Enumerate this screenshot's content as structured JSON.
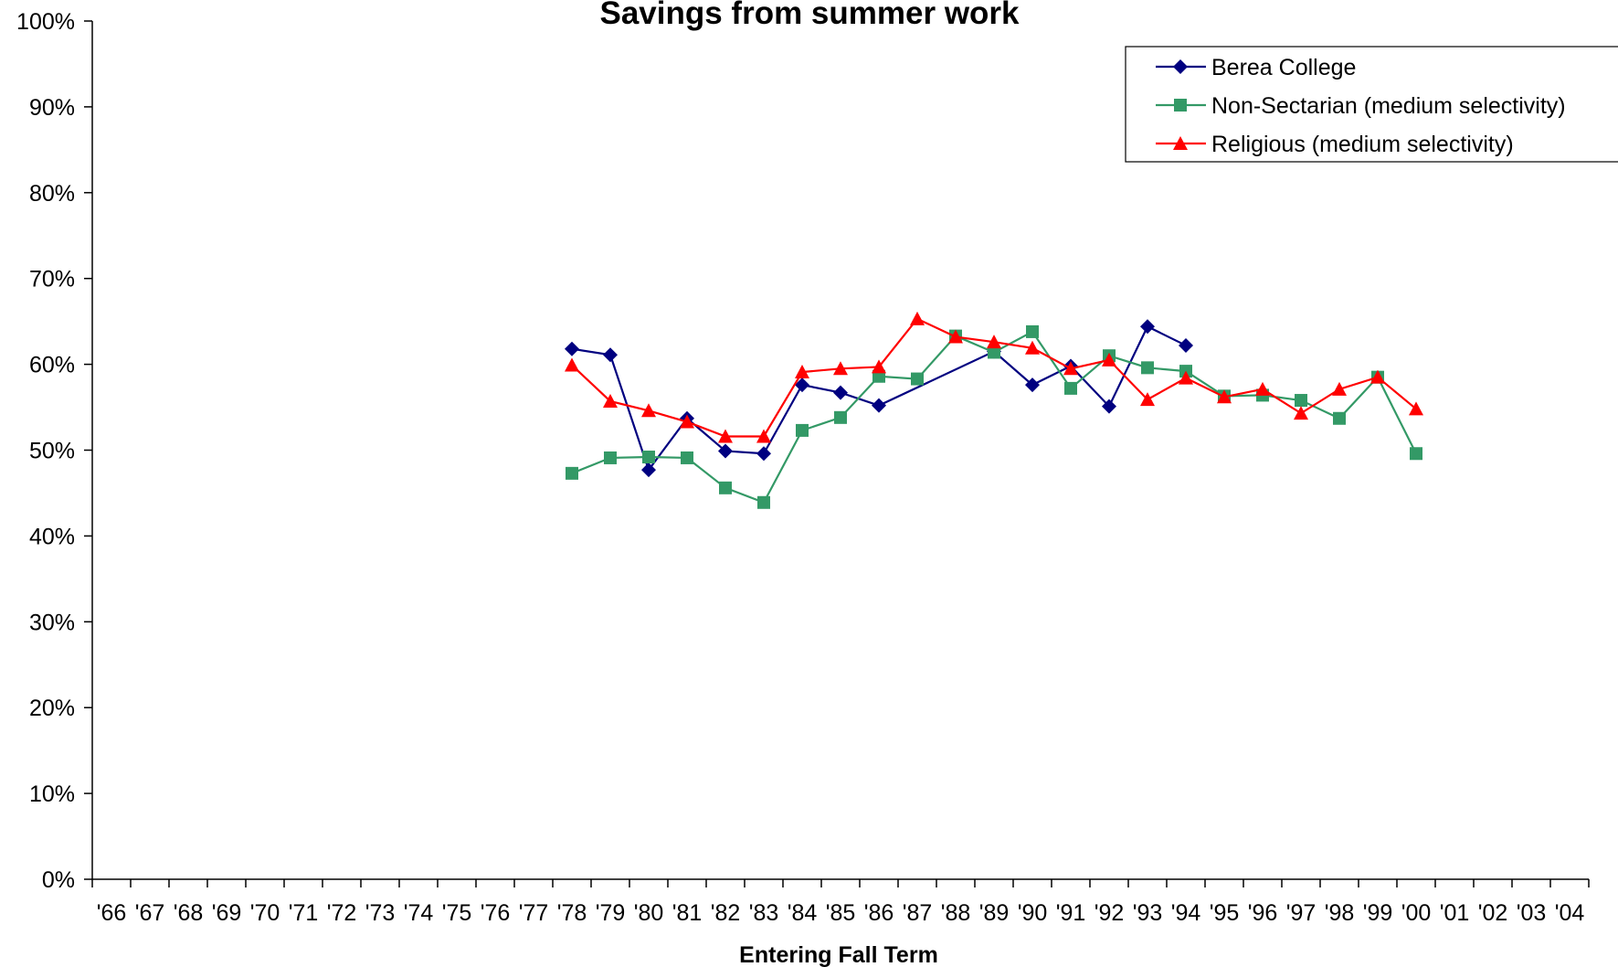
{
  "chart_data": {
    "type": "line",
    "title": "Savings from summer work",
    "xlabel": "Entering Fall Term",
    "ylabel": "",
    "ylim": [
      0,
      100
    ],
    "y_ticks": [
      "0%",
      "10%",
      "20%",
      "30%",
      "40%",
      "50%",
      "60%",
      "70%",
      "80%",
      "90%",
      "100%"
    ],
    "categories": [
      "'66",
      "'67",
      "'68",
      "'69",
      "'70",
      "'71",
      "'72",
      "'73",
      "'74",
      "'75",
      "'76",
      "'77",
      "'78",
      "'79",
      "'80",
      "'81",
      "'82",
      "'83",
      "'84",
      "'85",
      "'86",
      "'87",
      "'88",
      "'89",
      "'90",
      "'91",
      "'92",
      "'93",
      "'94",
      "'95",
      "'96",
      "'97",
      "'98",
      "'99",
      "'00",
      "'01",
      "'02",
      "'03",
      "'04"
    ],
    "legend_position": "top-right",
    "grid": false,
    "series": [
      {
        "name": "Berea College",
        "color": "#000080",
        "marker": "diamond",
        "values": [
          null,
          null,
          null,
          null,
          null,
          null,
          null,
          null,
          null,
          null,
          null,
          null,
          61.8,
          61.1,
          47.7,
          53.7,
          49.9,
          49.6,
          57.6,
          56.7,
          55.2,
          null,
          null,
          61.5,
          57.6,
          59.8,
          55.1,
          64.4,
          62.2,
          null,
          null,
          null,
          null,
          null,
          null,
          null,
          null,
          null,
          null
        ]
      },
      {
        "name": "Non-Sectarian (medium selectivity)",
        "color": "#339966",
        "marker": "square",
        "values": [
          null,
          null,
          null,
          null,
          null,
          null,
          null,
          null,
          null,
          null,
          null,
          null,
          47.3,
          49.1,
          49.2,
          49.1,
          45.6,
          43.9,
          52.3,
          53.8,
          58.6,
          58.3,
          63.3,
          61.4,
          63.8,
          57.2,
          61.0,
          59.6,
          59.2,
          56.3,
          56.4,
          55.8,
          53.7,
          58.5,
          49.6,
          null,
          null,
          null,
          null
        ]
      },
      {
        "name": "Religious (medium selectivity)",
        "color": "#ff0000",
        "marker": "triangle",
        "values": [
          null,
          null,
          null,
          null,
          null,
          null,
          null,
          null,
          null,
          null,
          null,
          null,
          59.9,
          55.7,
          54.6,
          53.3,
          51.6,
          51.6,
          59.1,
          59.5,
          59.7,
          65.3,
          63.2,
          62.6,
          61.9,
          59.5,
          60.5,
          55.9,
          58.4,
          56.2,
          57.1,
          54.3,
          57.1,
          58.5,
          54.8,
          null,
          null,
          null,
          null
        ]
      }
    ]
  }
}
